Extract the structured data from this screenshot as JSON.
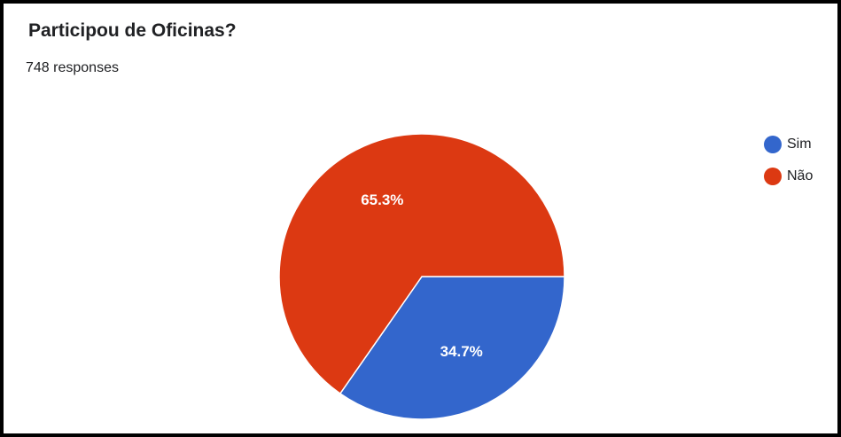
{
  "chart_data": {
    "type": "pie",
    "title": "Participou de Oficinas?",
    "subtitle": "748 responses",
    "legend_position": "right",
    "slices": [
      {
        "label": "Sim",
        "value": 34.7,
        "display": "34.7%",
        "color": "#3366cc"
      },
      {
        "label": "Não",
        "value": 65.3,
        "display": "65.3%",
        "color": "#dc3912"
      }
    ]
  }
}
